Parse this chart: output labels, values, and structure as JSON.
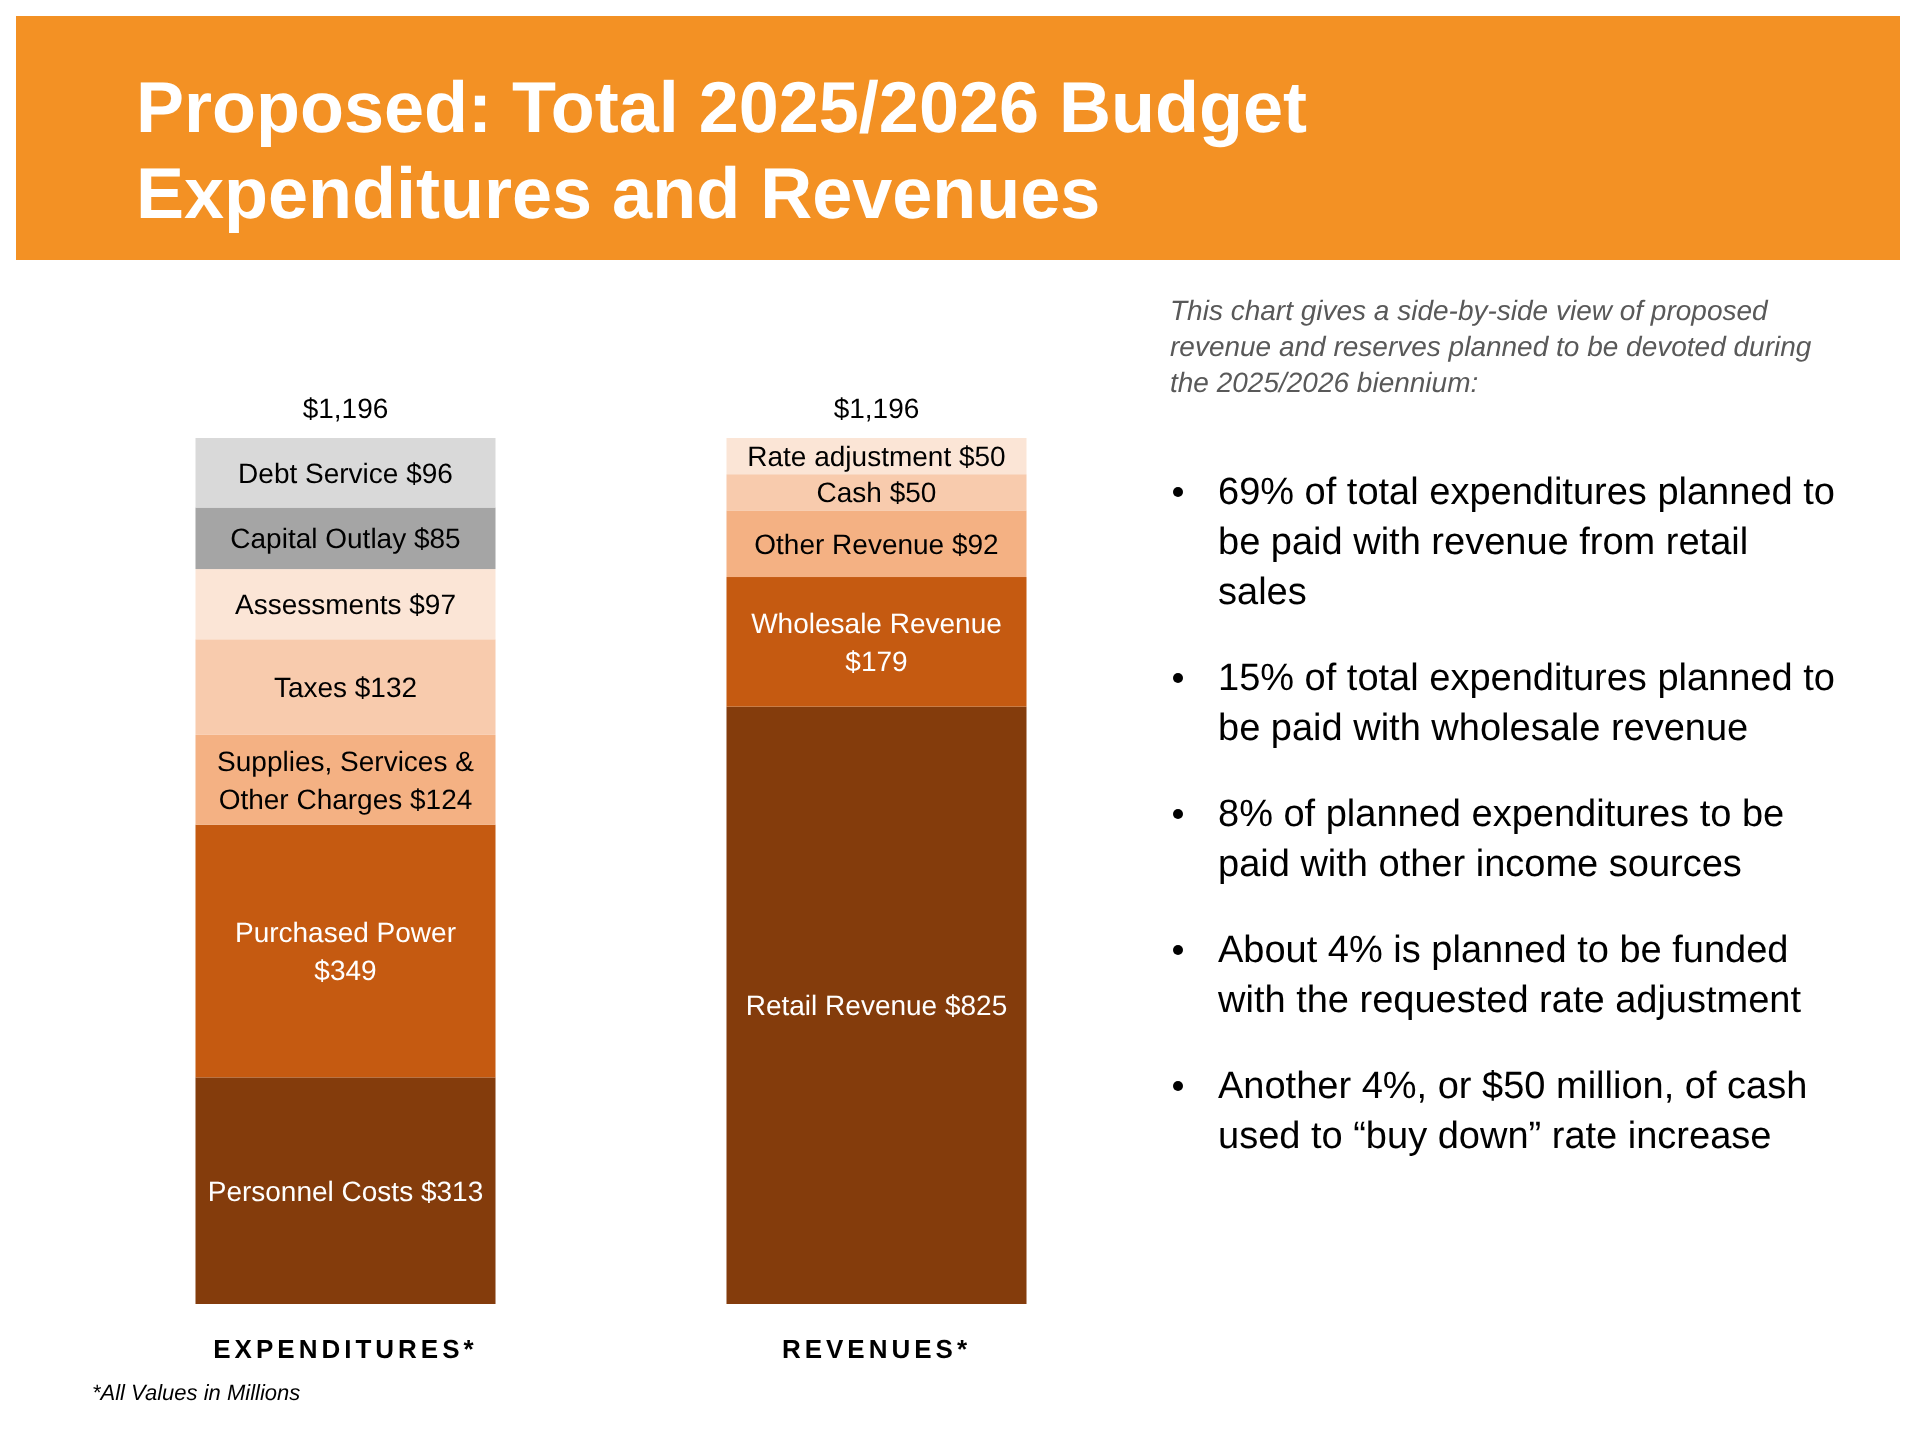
{
  "chart_data": [
    {
      "type": "bar",
      "title": "Proposed: Total 2025/2026 Budget Expenditures and Revenues",
      "categories": [
        "EXPENDITURES*",
        "REVENUES*"
      ],
      "stacked": true,
      "tick_labels": "x",
      "totals": [
        "$1,196",
        "$1,196"
      ],
      "annotations": [
        "*All Values in Millions"
      ],
      "series": [
        {
          "name": "Personnel Costs",
          "color": "#843c0c",
          "values": [
            313,
            null
          ],
          "value_labels": [
            "$313",
            null
          ]
        },
        {
          "name": "Purchased Power",
          "color": "#c55a11",
          "values": [
            349,
            null
          ],
          "value_labels": [
            "$349",
            null
          ]
        },
        {
          "name": "Supplies, Services & Other Charges",
          "color": "#f4b183",
          "values": [
            124,
            null
          ],
          "value_labels": [
            "$124",
            null
          ]
        },
        {
          "name": "Taxes",
          "color": "#f8cbad",
          "values": [
            132,
            null
          ],
          "value_labels": [
            "$132",
            null
          ]
        },
        {
          "name": "Assessments",
          "color": "#fbe5d6",
          "values": [
            97,
            null
          ],
          "value_labels": [
            "$97",
            null
          ]
        },
        {
          "name": "Capital Outlay",
          "color": "#a5a5a5",
          "values": [
            85,
            null
          ],
          "value_labels": [
            "$85",
            null
          ]
        },
        {
          "name": "Debt Service",
          "color": "#d9d9d9",
          "values": [
            96,
            null
          ],
          "value_labels": [
            "$96",
            null
          ]
        },
        {
          "name": "Retail Revenue",
          "color": "#843c0c",
          "values": [
            null,
            825
          ],
          "value_labels": [
            null,
            "$825"
          ]
        },
        {
          "name": "Wholesale Revenue",
          "color": "#c55a11",
          "values": [
            null,
            179
          ],
          "value_labels": [
            null,
            "$179"
          ]
        },
        {
          "name": "Other Revenue",
          "color": "#f4b183",
          "values": [
            null,
            92
          ],
          "value_labels": [
            null,
            "$92"
          ]
        },
        {
          "name": "Cash",
          "color": "#f8cbad",
          "values": [
            null,
            50
          ],
          "value_labels": [
            null,
            "$50"
          ]
        },
        {
          "name": "Rate adjustment",
          "color": "#fbe5d6",
          "values": [
            null,
            50
          ],
          "value_labels": [
            null,
            "$50"
          ]
        }
      ]
    },
    {
      "type": "other",
      "annotations": [
        "This chart gives a side-by-side view of proposed revenue and reserves planned to be devoted during the 2025/2026 biennium:",
        "69% of total expenditures planned to be paid with revenue from retail sales",
        "15% of total expenditures planned to be paid with wholesale revenue",
        "8% of planned expenditures to be paid with other income sources",
        "About 4% is planned to be funded with the requested rate adjustment",
        "Another 4%, or $50 million, of cash used to “buy down” rate increase"
      ]
    }
  ]
}
